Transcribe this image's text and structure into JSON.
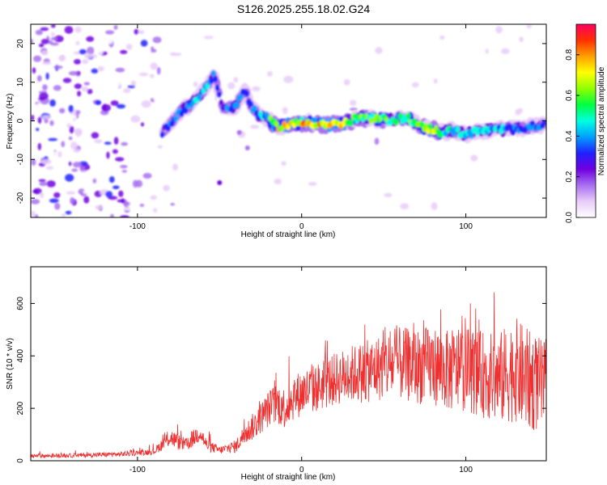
{
  "figure": {
    "title": "S126.2025.255.18.02.G24"
  },
  "chart_data": [
    {
      "type": "heatmap",
      "title": "S126.2025.255.18.02.G24",
      "xlabel": "Height of straight line (km)",
      "ylabel": "Frequency (Hz)",
      "xlim": [
        -165,
        149
      ],
      "ylim": [
        -25,
        25
      ],
      "xticks": [
        -100,
        0,
        100
      ],
      "yticks": [
        -20,
        -10,
        0,
        10,
        20
      ],
      "grid": false,
      "colorbar": {
        "label": "Normalized spectral amplitude",
        "range": [
          0,
          0.95
        ],
        "ticks": [
          "0.0",
          "0.2",
          "0.4",
          "0.6",
          "0.8"
        ],
        "colors": [
          "#ffffff",
          "#e8ccf8",
          "#a870f0",
          "#7000e0",
          "#2020ff",
          "#00a0ff",
          "#00ffe0",
          "#00ff40",
          "#90ff00",
          "#ffff00",
          "#ffa000",
          "#ff3000",
          "#ff0060"
        ]
      },
      "ridge": [
        {
          "x": -85,
          "y": -3,
          "a": 0.35
        },
        {
          "x": -75,
          "y": 2,
          "a": 0.42
        },
        {
          "x": -65,
          "y": 5,
          "a": 0.5
        },
        {
          "x": -58,
          "y": 9,
          "a": 0.5
        },
        {
          "x": -53,
          "y": 12,
          "a": 0.4
        },
        {
          "x": -48,
          "y": 3,
          "a": 0.38
        },
        {
          "x": -40,
          "y": 4,
          "a": 0.45
        },
        {
          "x": -35,
          "y": 8,
          "a": 0.4
        },
        {
          "x": -28,
          "y": 2,
          "a": 0.45
        },
        {
          "x": -22,
          "y": 1,
          "a": 0.5
        },
        {
          "x": -15,
          "y": -1.5,
          "a": 0.78
        },
        {
          "x": -5,
          "y": -0.8,
          "a": 0.8
        },
        {
          "x": 5,
          "y": -0.5,
          "a": 0.82
        },
        {
          "x": 15,
          "y": -1,
          "a": 0.85
        },
        {
          "x": 25,
          "y": -0.8,
          "a": 0.78
        },
        {
          "x": 35,
          "y": 0.8,
          "a": 0.68
        },
        {
          "x": 45,
          "y": 0.5,
          "a": 0.65
        },
        {
          "x": 55,
          "y": 0.2,
          "a": 0.62
        },
        {
          "x": 65,
          "y": 0.8,
          "a": 0.6
        },
        {
          "x": 72,
          "y": -1.5,
          "a": 0.68
        },
        {
          "x": 78,
          "y": -2,
          "a": 0.72
        },
        {
          "x": 85,
          "y": -3,
          "a": 0.62
        },
        {
          "x": 92,
          "y": -2.5,
          "a": 0.52
        },
        {
          "x": 100,
          "y": -3.5,
          "a": 0.5
        },
        {
          "x": 110,
          "y": -2.5,
          "a": 0.5
        },
        {
          "x": 120,
          "y": -2.3,
          "a": 0.5
        },
        {
          "x": 130,
          "y": -2,
          "a": 0.46
        },
        {
          "x": 140,
          "y": -1.5,
          "a": 0.42
        },
        {
          "x": 148,
          "y": -1,
          "a": 0.42
        }
      ]
    },
    {
      "type": "line",
      "xlabel": "Height of straight line (km)",
      "ylabel": "SNR (10 * v/v)",
      "xlim": [
        -165,
        149
      ],
      "ylim": [
        0,
        740
      ],
      "xticks": [
        -100,
        0,
        100
      ],
      "yticks": [
        0,
        200,
        400,
        600
      ],
      "grid": false,
      "series": [
        {
          "name": "SNR",
          "color": "#f03030",
          "x": [
            -165,
            -140,
            -110,
            -90,
            -80,
            -75,
            -70,
            -62,
            -58,
            -50,
            -40,
            -35,
            -28,
            -20,
            -15,
            -10,
            -5,
            0,
            10,
            20,
            30,
            40,
            50,
            60,
            70,
            80,
            90,
            100,
            110,
            120,
            125,
            130,
            135,
            140,
            145,
            149
          ],
          "values": [
            18,
            20,
            25,
            35,
            90,
            70,
            60,
            110,
            60,
            40,
            55,
            100,
            140,
            200,
            220,
            200,
            240,
            260,
            280,
            310,
            330,
            340,
            360,
            370,
            360,
            365,
            340,
            350,
            330,
            310,
            330,
            350,
            320,
            300,
            290,
            280
          ],
          "spread": [
            8,
            8,
            10,
            12,
            35,
            30,
            25,
            40,
            25,
            15,
            25,
            40,
            55,
            70,
            80,
            80,
            85,
            90,
            95,
            100,
            110,
            120,
            130,
            140,
            145,
            150,
            155,
            160,
            165,
            175,
            190,
            200,
            200,
            190,
            180,
            170
          ]
        }
      ]
    }
  ]
}
